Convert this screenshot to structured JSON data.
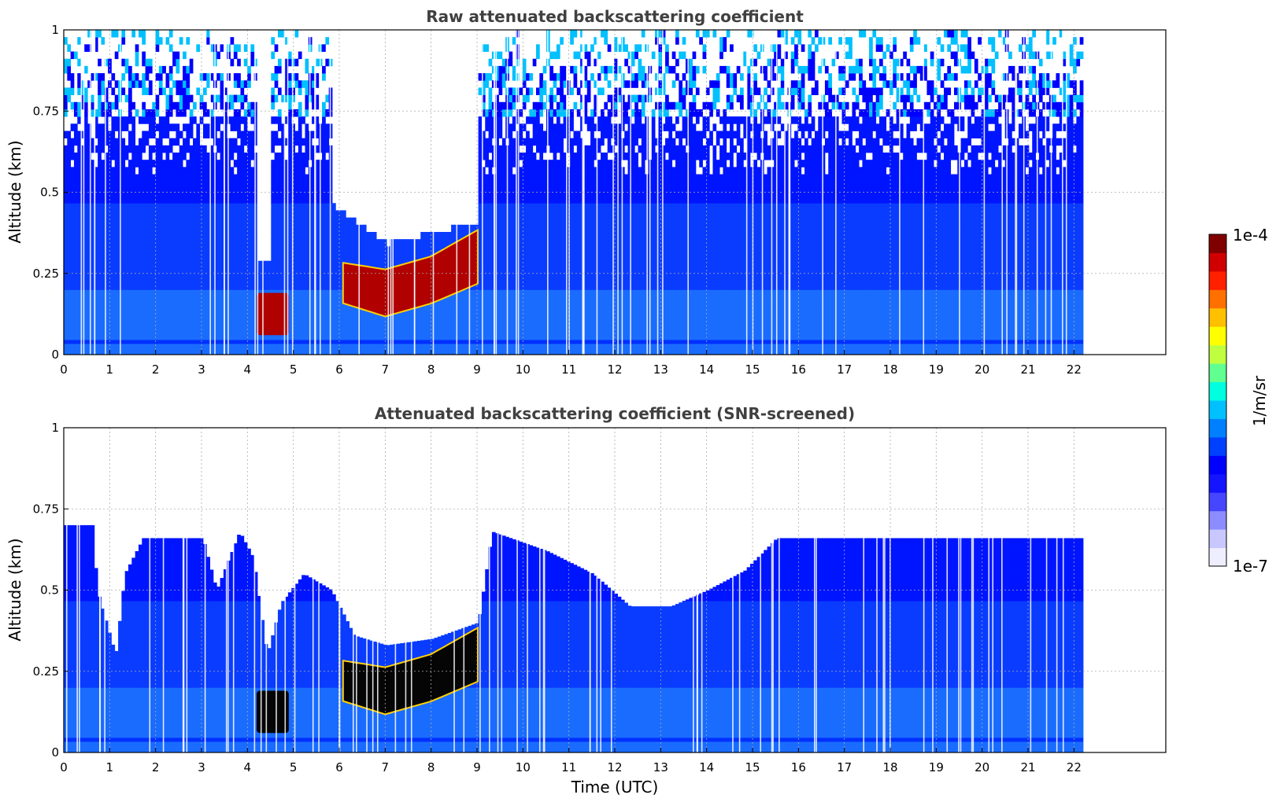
{
  "chart_data": [
    {
      "type": "heatmap",
      "title": "Raw attenuated backscattering coefficient",
      "xlabel": "",
      "ylabel": "Altitude (km)",
      "xlim": [
        0,
        24
      ],
      "ylim": [
        0,
        1
      ],
      "x_ticks": [
        "0",
        "1",
        "2",
        "3",
        "4",
        "5",
        "6",
        "7",
        "8",
        "9",
        "10",
        "11",
        "12",
        "13",
        "14",
        "15",
        "16",
        "17",
        "18",
        "19",
        "20",
        "21",
        "22"
      ],
      "y_ticks": [
        "0",
        "0.25",
        "0.5",
        "0.75",
        "1"
      ],
      "y_tick_values": [
        0,
        0.25,
        0.5,
        0.75,
        1
      ],
      "grid": true,
      "data_end_time": 22.2,
      "features": [
        {
          "name": "aerosol-layer-morning",
          "time": [
            4.2,
            4.9
          ],
          "altitude": [
            0.06,
            0.19
          ],
          "level": "high"
        },
        {
          "name": "aerosol-layer-rising",
          "time": [
            6.1,
            9.0
          ],
          "altitude_bottom": [
            0.12,
            0.22
          ],
          "altitude_top": [
            0.25,
            0.4
          ],
          "level": "high"
        },
        {
          "name": "near-ground-band",
          "time": [
            0,
            22.2
          ],
          "altitude": 0.04,
          "level": "moderate"
        }
      ]
    },
    {
      "type": "heatmap",
      "title": "Attenuated backscattering coefficient (SNR-screened)",
      "xlabel": "Time (UTC)",
      "ylabel": "Altitude (km)",
      "xlim": [
        0,
        24
      ],
      "ylim": [
        0,
        1
      ],
      "x_ticks": [
        "0",
        "1",
        "2",
        "3",
        "4",
        "5",
        "6",
        "7",
        "8",
        "9",
        "10",
        "11",
        "12",
        "13",
        "14",
        "15",
        "16",
        "17",
        "18",
        "19",
        "20",
        "21",
        "22"
      ],
      "y_ticks": [
        "0",
        "0.25",
        "0.5",
        "0.75",
        "1"
      ],
      "y_tick_values": [
        0,
        0.25,
        0.5,
        0.75,
        1
      ],
      "grid": true,
      "data_end_time": 22.2,
      "screen_top": [
        [
          0,
          0.7
        ],
        [
          0.6,
          0.7
        ],
        [
          0.7,
          0.5
        ],
        [
          1.1,
          0.3
        ],
        [
          1.3,
          0.55
        ],
        [
          1.7,
          0.66
        ],
        [
          3.0,
          0.66
        ],
        [
          3.3,
          0.5
        ],
        [
          3.8,
          0.68
        ],
        [
          4.1,
          0.6
        ],
        [
          4.4,
          0.3
        ],
        [
          4.7,
          0.46
        ],
        [
          5.2,
          0.55
        ],
        [
          5.8,
          0.5
        ],
        [
          6.3,
          0.36
        ],
        [
          7.0,
          0.33
        ],
        [
          8.0,
          0.35
        ],
        [
          9.0,
          0.4
        ],
        [
          9.3,
          0.68
        ],
        [
          10.5,
          0.62
        ],
        [
          11.5,
          0.55
        ],
        [
          12.3,
          0.45
        ],
        [
          13.2,
          0.45
        ],
        [
          14.0,
          0.5
        ],
        [
          14.8,
          0.56
        ],
        [
          15.5,
          0.66
        ],
        [
          22.2,
          0.66
        ]
      ]
    }
  ],
  "colorbar": {
    "label": "1/m/sr",
    "max_label": "1e-4",
    "min_label": "1e-7",
    "colors": [
      "#eeeeff",
      "#c8c8ff",
      "#8c8cff",
      "#4646ff",
      "#1414ff",
      "#0000ff",
      "#0040ff",
      "#0080ff",
      "#00c0ff",
      "#00ffe0",
      "#60ff90",
      "#c0ff40",
      "#ffff00",
      "#ffc000",
      "#ff7000",
      "#ff2000",
      "#d00000",
      "#800000"
    ]
  }
}
